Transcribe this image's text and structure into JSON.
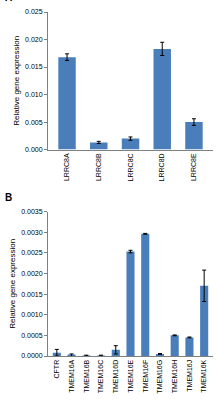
{
  "chart_data": [
    {
      "type": "bar",
      "title": "A",
      "y_label": "Relative gene expression",
      "categories": [
        "LRRC8A",
        "LRRC8B",
        "LRRC8C",
        "LRRC8D",
        "LRRC8E"
      ],
      "values": [
        0.0168,
        0.0013,
        0.002,
        0.0183,
        0.005
      ],
      "errors": [
        0.0006,
        0.0002,
        0.0003,
        0.0012,
        0.0006
      ],
      "color": "#4a7ebb",
      "ylim": [
        0,
        0.025
      ],
      "yticks": [
        {
          "value": 0,
          "label": "0.000"
        },
        {
          "value": 0.005,
          "label": "0.005"
        },
        {
          "value": 0.01,
          "label": "0.010"
        },
        {
          "value": 0.015,
          "label": "0.015"
        },
        {
          "value": 0.02,
          "label": "0.020"
        },
        {
          "value": 0.025,
          "label": "0.025"
        }
      ],
      "grid": false
    },
    {
      "type": "bar",
      "title": "B",
      "y_label": "Relative gene expression",
      "categories": [
        "CFTR",
        "TMEM16A",
        "TMEM16B",
        "TMEM16C",
        "TMEM16D",
        "TMEM16E",
        "TMEM16F",
        "TMEM16G",
        "TMEM16H",
        "TMEM16J",
        "TMEM16K"
      ],
      "values": [
        8e-05,
        2e-05,
        1e-05,
        1e-05,
        0.00015,
        0.00253,
        0.00296,
        5e-05,
        0.0005,
        0.00045,
        0.0017
      ],
      "errors": [
        8e-05,
        3e-05,
        1e-05,
        1e-05,
        0.0001,
        3e-05,
        1e-05,
        1e-05,
        1e-05,
        1e-05,
        0.00038
      ],
      "color": "#4a7ebb",
      "ylim": [
        0,
        0.0035
      ],
      "yticks": [
        {
          "value": 0,
          "label": "0.0000"
        },
        {
          "value": 0.0005,
          "label": "0.0005"
        },
        {
          "value": 0.001,
          "label": "0.0010"
        },
        {
          "value": 0.0015,
          "label": "0.0015"
        },
        {
          "value": 0.002,
          "label": "0.0020"
        },
        {
          "value": 0.0025,
          "label": "0.0025"
        },
        {
          "value": 0.003,
          "label": "0.0030"
        },
        {
          "value": 0.0035,
          "label": "0.0035"
        }
      ],
      "grid": false
    }
  ]
}
